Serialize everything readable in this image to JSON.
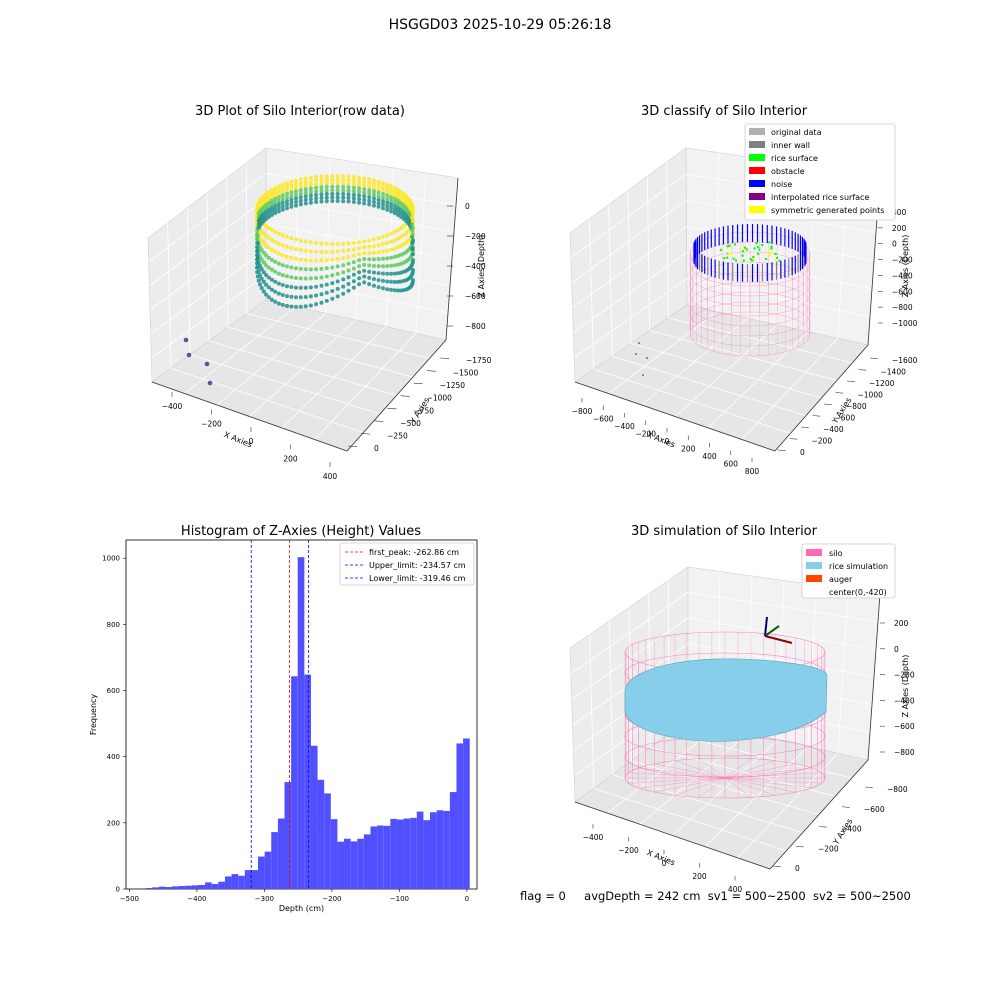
{
  "figure": {
    "suptitle": "HSGGD03 2025-10-29 05:26:18",
    "footer": {
      "flag": "flag = 0",
      "avg_depth": "avgDepth = 242 cm",
      "sv1": "sv1 = 500~2500",
      "sv2": "sv2 = 500~2500"
    }
  },
  "colors": {
    "histogram_bar": "#5050ff",
    "peak_line": "#ff0000",
    "limit_line": "#0000ff",
    "pane": "#f2f2f2",
    "silo": "#ff69b4",
    "rice": "#87ceeb",
    "auger": "#ff4500"
  },
  "chart_data": [
    {
      "type": "scatter",
      "projection": "3d",
      "title": "3D Plot of Silo Interior(row data)",
      "xlabel": "X Axies",
      "ylabel": "Y Axies",
      "zlabel": "Z Axies (Depth)",
      "xticks": [
        "−400",
        "−200",
        "0",
        "200",
        "400"
      ],
      "yticks": [
        "0",
        "−250",
        "−500",
        "−750",
        "−1000",
        "−1250",
        "−1500",
        "−1750"
      ],
      "zticks": [
        "0",
        "−200",
        "−400",
        "−600",
        "−800"
      ],
      "colormap": "viridis",
      "grid": true
    },
    {
      "type": "scatter",
      "projection": "3d",
      "title": "3D classify of Silo Interior",
      "xlabel": "X Axies",
      "ylabel": "Y Axies",
      "zlabel": "Z Axies (Depth)",
      "xticks": [
        "−800",
        "−600",
        "−400",
        "−200",
        "0",
        "200",
        "400",
        "600",
        "800"
      ],
      "yticks": [
        "0",
        "−200",
        "−400",
        "−600",
        "−800",
        "−1000",
        "−1200",
        "−1400",
        "−1600"
      ],
      "zticks": [
        "400",
        "200",
        "0",
        "−200",
        "−400",
        "−600",
        "−800",
        "−1000"
      ],
      "legend": [
        {
          "label": "original data",
          "color": "#b0b0b0"
        },
        {
          "label": "inner wall",
          "color": "#808080"
        },
        {
          "label": "rice surface",
          "color": "#00ff00"
        },
        {
          "label": "obstacle",
          "color": "#ff0000"
        },
        {
          "label": "noise",
          "color": "#0000ff"
        },
        {
          "label": "interpolated rice surface",
          "color": "#800080"
        },
        {
          "label": "symmetric generated points",
          "color": "#ffff00"
        }
      ],
      "legend_loc": "upper right",
      "grid": true
    },
    {
      "type": "bar",
      "title": "Histogram of Z-Axies (Height) Values",
      "xlabel": "Depth (cm)",
      "ylabel": "Frequency",
      "xlim": [
        -505,
        15
      ],
      "ylim": [
        0,
        1055
      ],
      "xticks": [
        -500,
        -400,
        -300,
        -200,
        -100,
        0
      ],
      "xtick_labels": [
        "−500",
        "−400",
        "−300",
        "−200",
        "−100",
        "0"
      ],
      "yticks": [
        0,
        200,
        400,
        600,
        800,
        1000
      ],
      "bin_width": 9.8,
      "bin_start": -476,
      "values": [
        3,
        5,
        7,
        6,
        8,
        9,
        10,
        11,
        12,
        20,
        15,
        22,
        38,
        45,
        40,
        57,
        57,
        98,
        113,
        172,
        213,
        323,
        643,
        1003,
        648,
        433,
        330,
        289,
        211,
        143,
        152,
        144,
        152,
        165,
        189,
        192,
        191,
        212,
        210,
        213,
        215,
        234,
        208,
        232,
        238,
        236,
        293,
        440,
        455
      ],
      "lines": [
        {
          "name": "first_peak: -262.86 cm",
          "x": -262.86,
          "color": "#ff0000"
        },
        {
          "name": "Upper_limit: -234.57 cm",
          "x": -234.57,
          "color": "#0000ff"
        },
        {
          "name": "Lower_limit: -319.46 cm",
          "x": -319.46,
          "color": "#0000ff"
        }
      ],
      "legend_loc": "upper right"
    },
    {
      "type": "surface",
      "projection": "3d",
      "title": "3D simulation of Silo Interior",
      "xlabel": "X Axies",
      "ylabel": "Y Axies",
      "zlabel": "Z Axies (Depth)",
      "xticks": [
        "−400",
        "−200",
        "0",
        "200",
        "400"
      ],
      "yticks": [
        "0",
        "−200",
        "−400",
        "−600",
        "−800"
      ],
      "zticks": [
        "200",
        "0",
        "−200",
        "−400",
        "−600",
        "−800"
      ],
      "legend": [
        {
          "label": "silo",
          "color": "#ff69b4"
        },
        {
          "label": "rice simulation",
          "color": "#87ceeb"
        },
        {
          "label": "auger",
          "color": "#ff4500"
        },
        {
          "label": "center(0,-420)",
          "color": "none"
        }
      ],
      "legend_loc": "upper right",
      "grid": true
    }
  ]
}
